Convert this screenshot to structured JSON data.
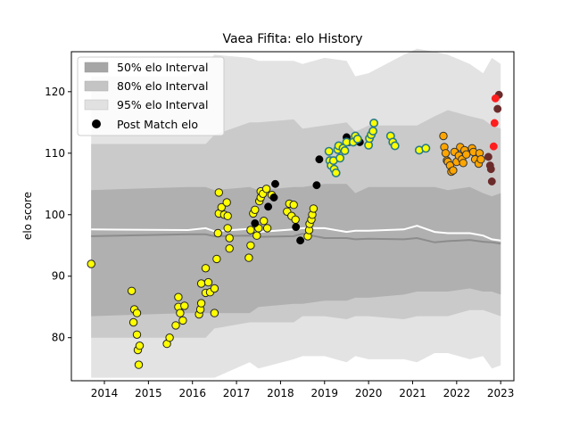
{
  "chart_data": {
    "type": "scatter",
    "title": "Vaea Fifita: elo History",
    "xlabel": "",
    "ylabel": "elo score",
    "xlim": [
      2013.25,
      2023.3
    ],
    "ylim": [
      73.0,
      126.5
    ],
    "x_ticks": [
      2014,
      2015,
      2016,
      2017,
      2018,
      2019,
      2020,
      2021,
      2022,
      2023
    ],
    "y_ticks": [
      80,
      90,
      100,
      110,
      120
    ],
    "grid": false,
    "legend_position": "top-left",
    "legend": [
      {
        "label": "50% elo Interval",
        "color": "#a6a6a6"
      },
      {
        "label": "80% elo Interval",
        "color": "#c4c4c4"
      },
      {
        "label": "95% elo Interval",
        "color": "#e1e1e1"
      },
      {
        "label": "Post Match elo",
        "color": "#000000"
      }
    ],
    "colors": {
      "band95": "#e3e3e3",
      "band80": "#cacaca",
      "band50": "#b0b0b0",
      "median_line": "#8c8c8c",
      "mean_line": "#ffffff",
      "yellow": "#ffff00",
      "orange": "#ffa500",
      "red": "#ff1e1e",
      "maroon": "#6b2b2b",
      "black": "#000000",
      "teal_edge": "#2a7b86"
    },
    "bands": {
      "x": [
        2013.7,
        2015.9,
        2016.3,
        2016.5,
        2017.3,
        2017.5,
        2018.3,
        2018.5,
        2019.0,
        2019.5,
        2019.7,
        2020.0,
        2020.8,
        2021.1,
        2021.5,
        2021.8,
        2022.3,
        2022.6,
        2022.8,
        2023.0
      ],
      "p95_hi": [
        122.5,
        122.5,
        124.5,
        126.0,
        125.5,
        125.0,
        125.0,
        124.5,
        125.5,
        125.0,
        122.5,
        123.0,
        126.0,
        127.0,
        126.5,
        126.0,
        124.5,
        123.0,
        125.5,
        124.5
      ],
      "p95_lo": [
        73.5,
        73.5,
        73.5,
        73.5,
        76.0,
        75.0,
        76.5,
        77.0,
        77.0,
        76.0,
        77.0,
        76.5,
        76.5,
        76.0,
        77.5,
        77.5,
        76.5,
        77.0,
        75.0,
        75.5
      ],
      "p80_hi": [
        111.5,
        111.5,
        111.5,
        113.0,
        115.0,
        115.0,
        115.5,
        114.0,
        114.5,
        115.0,
        113.5,
        114.5,
        114.5,
        114.5,
        116.0,
        117.0,
        116.0,
        115.5,
        114.5,
        114.0
      ],
      "p80_lo": [
        80.0,
        80.0,
        80.0,
        81.5,
        82.5,
        82.5,
        82.5,
        83.5,
        83.5,
        83.0,
        83.5,
        83.5,
        83.0,
        83.5,
        83.5,
        83.5,
        84.5,
        84.5,
        84.0,
        83.5
      ],
      "p50_hi": [
        104.0,
        104.5,
        104.5,
        104.0,
        104.5,
        104.0,
        104.5,
        104.5,
        105.0,
        105.0,
        103.5,
        104.5,
        104.5,
        104.5,
        104.5,
        104.0,
        104.5,
        103.5,
        103.0,
        103.5
      ],
      "p50_lo": [
        83.5,
        84.0,
        84.0,
        84.0,
        84.0,
        85.0,
        85.5,
        85.5,
        86.0,
        86.0,
        86.5,
        86.5,
        87.0,
        87.5,
        87.5,
        87.5,
        88.0,
        87.5,
        87.5,
        87.0
      ],
      "median": [
        96.5,
        96.8,
        96.8,
        96.5,
        96.6,
        96.4,
        96.5,
        96.9,
        96.2,
        96.2,
        96.0,
        96.1,
        96.0,
        96.2,
        95.5,
        95.7,
        95.9,
        95.6,
        95.5,
        95.3
      ],
      "mean": [
        97.6,
        97.5,
        97.8,
        97.3,
        97.7,
        97.2,
        97.6,
        97.8,
        97.8,
        97.2,
        97.4,
        97.4,
        97.6,
        98.2,
        97.2,
        97.0,
        97.0,
        96.6,
        96.0,
        95.8
      ]
    },
    "series": [
      {
        "color": "yellow",
        "points": [
          [
            2013.7,
            92.0
          ],
          [
            2014.62,
            87.6
          ],
          [
            2014.68,
            84.6
          ],
          [
            2014.66,
            82.5
          ],
          [
            2014.74,
            84.0
          ],
          [
            2014.74,
            80.5
          ],
          [
            2014.76,
            78.0
          ],
          [
            2014.8,
            78.7
          ],
          [
            2014.78,
            75.6
          ],
          [
            2015.42,
            79.0
          ],
          [
            2015.48,
            80.0
          ],
          [
            2015.62,
            82.0
          ],
          [
            2015.68,
            86.6
          ],
          [
            2015.68,
            85.0
          ],
          [
            2015.72,
            84.0
          ],
          [
            2015.78,
            82.8
          ],
          [
            2015.82,
            85.2
          ],
          [
            2016.15,
            83.8
          ],
          [
            2016.18,
            84.6
          ],
          [
            2016.2,
            85.6
          ],
          [
            2016.2,
            88.8
          ],
          [
            2016.3,
            87.3
          ],
          [
            2016.3,
            91.3
          ],
          [
            2016.36,
            89.0
          ],
          [
            2016.4,
            87.4
          ],
          [
            2016.5,
            84.0
          ],
          [
            2016.5,
            88.0
          ],
          [
            2016.55,
            92.8
          ],
          [
            2016.58,
            97.0
          ],
          [
            2016.6,
            103.6
          ],
          [
            2016.6,
            100.2
          ],
          [
            2016.66,
            101.2
          ],
          [
            2016.72,
            100.0
          ],
          [
            2016.78,
            102.0
          ],
          [
            2016.8,
            99.8
          ],
          [
            2016.8,
            97.8
          ],
          [
            2016.84,
            96.2
          ],
          [
            2016.84,
            94.5
          ],
          [
            2017.28,
            93.0
          ],
          [
            2017.32,
            95.0
          ],
          [
            2017.32,
            97.5
          ],
          [
            2017.38,
            100.2
          ],
          [
            2017.42,
            100.8
          ],
          [
            2017.46,
            96.6
          ],
          [
            2017.5,
            97.8
          ],
          [
            2017.52,
            102.2
          ],
          [
            2017.55,
            102.8
          ],
          [
            2017.55,
            103.8
          ],
          [
            2017.6,
            103.4
          ],
          [
            2017.62,
            99.0
          ],
          [
            2017.68,
            104.2
          ],
          [
            2017.7,
            97.8
          ],
          [
            2017.8,
            103.2
          ],
          [
            2018.15,
            100.5
          ],
          [
            2018.2,
            101.8
          ],
          [
            2018.25,
            99.8
          ],
          [
            2018.3,
            101.6
          ],
          [
            2018.34,
            99.2
          ],
          [
            2018.62,
            96.5
          ],
          [
            2018.65,
            97.5
          ],
          [
            2018.66,
            98.5
          ],
          [
            2018.7,
            99.2
          ],
          [
            2018.72,
            100.0
          ],
          [
            2018.75,
            101.0
          ]
        ]
      },
      {
        "color": "black",
        "points": [
          [
            2017.42,
            98.6
          ],
          [
            2017.72,
            101.3
          ],
          [
            2017.85,
            102.8
          ],
          [
            2017.88,
            105.0
          ],
          [
            2018.35,
            98.0
          ],
          [
            2018.45,
            95.8
          ],
          [
            2018.82,
            104.8
          ],
          [
            2018.88,
            109.0
          ],
          [
            2019.5,
            112.6
          ],
          [
            2019.55,
            111.8
          ],
          [
            2019.7,
            112.3
          ],
          [
            2019.8,
            111.8
          ]
        ]
      },
      {
        "color": "teal",
        "points": [
          [
            2019.1,
            110.3
          ],
          [
            2019.12,
            108.8
          ],
          [
            2019.15,
            108.0
          ],
          [
            2019.2,
            108.8
          ],
          [
            2019.22,
            107.4
          ],
          [
            2019.26,
            106.8
          ],
          [
            2019.3,
            110.6
          ],
          [
            2019.32,
            111.2
          ],
          [
            2019.35,
            109.2
          ],
          [
            2019.42,
            110.8
          ],
          [
            2019.46,
            110.4
          ],
          [
            2019.5,
            111.8
          ],
          [
            2019.65,
            111.8
          ],
          [
            2019.7,
            112.8
          ],
          [
            2019.75,
            112.3
          ],
          [
            2020.0,
            111.3
          ],
          [
            2020.02,
            112.4
          ],
          [
            2020.06,
            113.0
          ],
          [
            2020.1,
            113.6
          ],
          [
            2020.12,
            114.9
          ],
          [
            2020.5,
            112.8
          ],
          [
            2020.55,
            111.8
          ],
          [
            2020.6,
            111.2
          ],
          [
            2021.15,
            110.5
          ],
          [
            2021.3,
            110.8
          ]
        ]
      },
      {
        "color": "orange",
        "points": [
          [
            2021.7,
            112.8
          ],
          [
            2021.72,
            111.0
          ],
          [
            2021.75,
            110.0
          ],
          [
            2021.78,
            108.8
          ],
          [
            2021.8,
            108.6
          ],
          [
            2021.85,
            108.0
          ],
          [
            2021.88,
            107.0
          ],
          [
            2021.92,
            107.2
          ],
          [
            2021.95,
            110.2
          ],
          [
            2022.0,
            108.6
          ],
          [
            2022.05,
            109.6
          ],
          [
            2022.08,
            111.0
          ],
          [
            2022.12,
            109.0
          ],
          [
            2022.15,
            108.4
          ],
          [
            2022.18,
            110.5
          ],
          [
            2022.22,
            109.8
          ],
          [
            2022.35,
            110.8
          ],
          [
            2022.38,
            110.2
          ],
          [
            2022.42,
            109.0
          ],
          [
            2022.5,
            108.3
          ],
          [
            2022.52,
            110.0
          ],
          [
            2022.55,
            109.0
          ]
        ]
      },
      {
        "color": "maroon",
        "points": [
          [
            2022.72,
            109.4
          ],
          [
            2022.76,
            108.0
          ],
          [
            2022.78,
            107.4
          ],
          [
            2022.8,
            105.4
          ],
          [
            2022.93,
            117.2
          ],
          [
            2022.96,
            119.5
          ]
        ]
      },
      {
        "color": "red",
        "points": [
          [
            2022.84,
            111.1
          ],
          [
            2022.86,
            114.9
          ],
          [
            2022.88,
            118.9
          ]
        ]
      }
    ]
  }
}
